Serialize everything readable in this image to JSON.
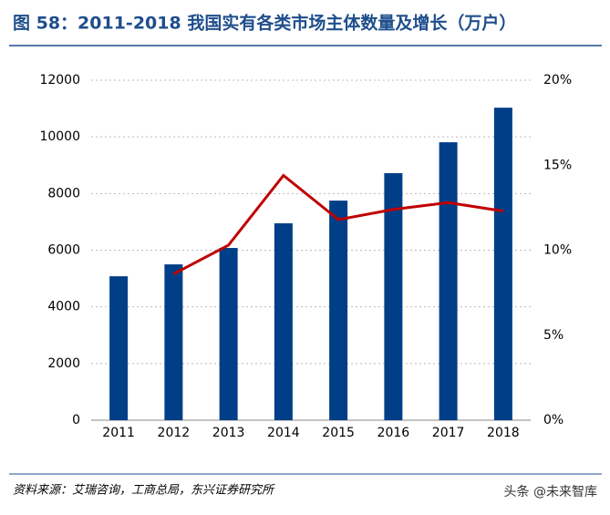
{
  "chart_data": {
    "type": "bar-line",
    "title": "图 58：2011-2018 我国实有各类市场主体数量及增长（万户）",
    "source": "资料来源：艾瑞咨询，工商总局，东兴证券研究所",
    "watermark": "头条 @未来智库",
    "categories": [
      "2011",
      "2012",
      "2013",
      "2014",
      "2015",
      "2016",
      "2017",
      "2018"
    ],
    "series": [
      {
        "type": "bar",
        "color": "#003f87",
        "values": [
          5080,
          5500,
          6080,
          6950,
          7750,
          8720,
          9810,
          11030
        ]
      },
      {
        "type": "line",
        "axis": "y2",
        "color": "#c00000",
        "values": [
          null,
          8.6,
          10.3,
          14.4,
          11.8,
          12.4,
          12.8,
          12.3
        ]
      }
    ],
    "ylim": [
      0,
      12000
    ],
    "yticks": [
      0,
      2000,
      4000,
      6000,
      8000,
      10000,
      12000
    ],
    "y2lim": [
      0,
      20
    ],
    "y2ticks": [
      {
        "value": 0,
        "label": "0%"
      },
      {
        "value": 5,
        "label": "5%"
      },
      {
        "value": 10,
        "label": "10%"
      },
      {
        "value": 15,
        "label": "15%"
      },
      {
        "value": 20,
        "label": "20%"
      }
    ],
    "grid": true
  }
}
